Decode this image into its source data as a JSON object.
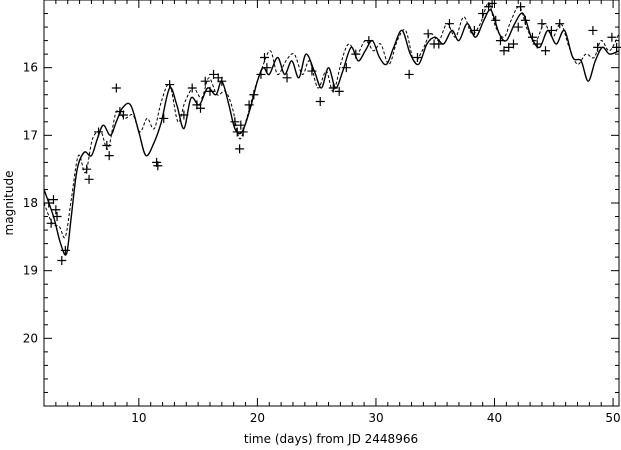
{
  "chart_data": {
    "type": "scatter",
    "title": "",
    "xlabel": "time (days) from JD 2448966",
    "ylabel": "magnitude",
    "xlim": [
      2,
      50.5
    ],
    "ylim": [
      21.0,
      15.0
    ],
    "y_inverted": true,
    "grid": false,
    "x_ticks": [
      10,
      20,
      30,
      40,
      50
    ],
    "y_ticks": [
      16,
      17,
      18,
      19,
      20
    ],
    "series": [
      {
        "style": "plus-markers",
        "color": "#000000",
        "points": [
          [
            2.4,
            18.0
          ],
          [
            2.6,
            18.3
          ],
          [
            2.8,
            17.95
          ],
          [
            3.0,
            18.1
          ],
          [
            3.1,
            18.2
          ],
          [
            3.5,
            18.85
          ],
          [
            3.8,
            18.7
          ],
          [
            5.6,
            17.5
          ],
          [
            5.8,
            17.65
          ],
          [
            6.6,
            16.95
          ],
          [
            7.3,
            17.15
          ],
          [
            7.5,
            17.3
          ],
          [
            8.1,
            16.3
          ],
          [
            8.4,
            16.65
          ],
          [
            8.7,
            16.7
          ],
          [
            11.5,
            17.4
          ],
          [
            11.6,
            17.45
          ],
          [
            12.1,
            16.75
          ],
          [
            12.6,
            16.25
          ],
          [
            13.8,
            16.7
          ],
          [
            14.5,
            16.3
          ],
          [
            14.9,
            16.55
          ],
          [
            15.2,
            16.6
          ],
          [
            15.6,
            16.2
          ],
          [
            16.0,
            16.35
          ],
          [
            16.3,
            16.1
          ],
          [
            16.7,
            16.15
          ],
          [
            17.0,
            16.2
          ],
          [
            18.1,
            16.8
          ],
          [
            18.3,
            16.95
          ],
          [
            18.5,
            17.2
          ],
          [
            18.6,
            16.85
          ],
          [
            18.8,
            16.95
          ],
          [
            19.3,
            16.55
          ],
          [
            19.7,
            16.4
          ],
          [
            20.3,
            16.1
          ],
          [
            20.6,
            15.85
          ],
          [
            20.8,
            16.0
          ],
          [
            22.5,
            16.15
          ],
          [
            24.6,
            16.05
          ],
          [
            25.3,
            16.5
          ],
          [
            26.4,
            16.3
          ],
          [
            26.9,
            16.35
          ],
          [
            27.5,
            16.0
          ],
          [
            28.3,
            15.8
          ],
          [
            29.4,
            15.6
          ],
          [
            32.8,
            16.1
          ],
          [
            33.5,
            15.85
          ],
          [
            34.4,
            15.5
          ],
          [
            34.9,
            15.65
          ],
          [
            35.3,
            15.65
          ],
          [
            36.2,
            15.35
          ],
          [
            38.3,
            15.45
          ],
          [
            39.0,
            15.2
          ],
          [
            39.5,
            15.1
          ],
          [
            39.8,
            15.05
          ],
          [
            40.1,
            15.3
          ],
          [
            40.5,
            15.6
          ],
          [
            40.8,
            15.75
          ],
          [
            41.2,
            15.7
          ],
          [
            41.6,
            15.65
          ],
          [
            42.0,
            15.4
          ],
          [
            42.2,
            15.1
          ],
          [
            42.6,
            15.3
          ],
          [
            43.2,
            15.55
          ],
          [
            43.6,
            15.65
          ],
          [
            44.0,
            15.35
          ],
          [
            44.3,
            15.75
          ],
          [
            44.8,
            15.45
          ],
          [
            45.5,
            15.35
          ],
          [
            48.3,
            15.45
          ],
          [
            48.7,
            15.7
          ],
          [
            49.9,
            15.55
          ],
          [
            50.3,
            15.7
          ]
        ]
      },
      {
        "style": "solid-line",
        "color": "#000000",
        "points": [
          [
            2.0,
            17.8
          ],
          [
            2.8,
            18.2
          ],
          [
            3.4,
            18.6
          ],
          [
            3.9,
            18.75
          ],
          [
            4.3,
            18.2
          ],
          [
            4.8,
            17.5
          ],
          [
            5.4,
            17.25
          ],
          [
            6.0,
            17.3
          ],
          [
            6.5,
            17.05
          ],
          [
            7.0,
            16.85
          ],
          [
            7.6,
            17.0
          ],
          [
            8.1,
            16.8
          ],
          [
            8.6,
            16.6
          ],
          [
            9.3,
            16.55
          ],
          [
            10.0,
            16.95
          ],
          [
            10.6,
            17.3
          ],
          [
            11.3,
            17.1
          ],
          [
            11.9,
            16.8
          ],
          [
            12.6,
            16.3
          ],
          [
            13.2,
            16.55
          ],
          [
            13.8,
            16.9
          ],
          [
            14.4,
            16.45
          ],
          [
            15.1,
            16.55
          ],
          [
            15.8,
            16.3
          ],
          [
            16.5,
            16.4
          ],
          [
            17.0,
            16.2
          ],
          [
            17.6,
            16.55
          ],
          [
            18.1,
            16.9
          ],
          [
            18.7,
            16.95
          ],
          [
            19.4,
            16.6
          ],
          [
            20.0,
            16.2
          ],
          [
            20.5,
            16.0
          ],
          [
            21.0,
            16.1
          ],
          [
            21.7,
            15.85
          ],
          [
            22.3,
            16.1
          ],
          [
            22.9,
            15.9
          ],
          [
            23.5,
            16.15
          ],
          [
            24.1,
            15.8
          ],
          [
            24.8,
            16.05
          ],
          [
            25.4,
            16.3
          ],
          [
            26.0,
            16.0
          ],
          [
            26.6,
            16.3
          ],
          [
            27.2,
            16.05
          ],
          [
            27.9,
            15.7
          ],
          [
            28.5,
            15.9
          ],
          [
            29.1,
            15.75
          ],
          [
            29.7,
            15.6
          ],
          [
            30.3,
            15.85
          ],
          [
            30.9,
            15.95
          ],
          [
            31.5,
            15.7
          ],
          [
            32.2,
            15.45
          ],
          [
            32.9,
            15.8
          ],
          [
            33.6,
            15.95
          ],
          [
            34.3,
            15.65
          ],
          [
            35.0,
            15.55
          ],
          [
            35.7,
            15.65
          ],
          [
            36.4,
            15.45
          ],
          [
            37.0,
            15.6
          ],
          [
            37.7,
            15.35
          ],
          [
            38.4,
            15.55
          ],
          [
            39.1,
            15.3
          ],
          [
            39.7,
            15.15
          ],
          [
            40.4,
            15.5
          ],
          [
            41.0,
            15.6
          ],
          [
            41.7,
            15.35
          ],
          [
            42.4,
            15.2
          ],
          [
            43.1,
            15.55
          ],
          [
            43.8,
            15.7
          ],
          [
            44.5,
            15.45
          ],
          [
            45.2,
            15.65
          ],
          [
            45.9,
            15.45
          ],
          [
            46.6,
            15.85
          ],
          [
            47.3,
            15.9
          ],
          [
            47.9,
            16.2
          ],
          [
            48.5,
            15.9
          ],
          [
            49.1,
            15.7
          ],
          [
            49.7,
            15.8
          ],
          [
            50.5,
            15.75
          ]
        ]
      },
      {
        "style": "dashed-line",
        "color": "#000000",
        "points": [
          [
            2.0,
            18.0
          ],
          [
            2.7,
            18.3
          ],
          [
            3.3,
            18.35
          ],
          [
            3.8,
            18.5
          ],
          [
            4.3,
            17.95
          ],
          [
            4.9,
            17.3
          ],
          [
            5.5,
            17.55
          ],
          [
            6.1,
            17.05
          ],
          [
            6.8,
            16.95
          ],
          [
            7.4,
            17.2
          ],
          [
            8.1,
            16.65
          ],
          [
            8.8,
            16.75
          ],
          [
            9.5,
            16.7
          ],
          [
            10.1,
            16.95
          ],
          [
            10.7,
            16.75
          ],
          [
            11.3,
            16.9
          ],
          [
            11.9,
            16.5
          ],
          [
            12.6,
            16.25
          ],
          [
            13.3,
            16.8
          ],
          [
            13.9,
            16.5
          ],
          [
            14.6,
            16.3
          ],
          [
            15.3,
            16.45
          ],
          [
            15.9,
            16.15
          ],
          [
            16.6,
            16.4
          ],
          [
            17.3,
            16.35
          ],
          [
            17.9,
            16.6
          ],
          [
            18.5,
            17.05
          ],
          [
            19.1,
            16.75
          ],
          [
            19.8,
            16.3
          ],
          [
            20.4,
            16.0
          ],
          [
            21.1,
            15.75
          ],
          [
            21.7,
            16.1
          ],
          [
            22.4,
            15.9
          ],
          [
            23.1,
            15.8
          ],
          [
            23.8,
            16.1
          ],
          [
            24.4,
            15.9
          ],
          [
            25.1,
            16.3
          ],
          [
            25.8,
            16.05
          ],
          [
            26.4,
            16.35
          ],
          [
            27.1,
            15.9
          ],
          [
            27.7,
            15.65
          ],
          [
            28.4,
            15.8
          ],
          [
            29.1,
            15.6
          ],
          [
            29.8,
            15.75
          ],
          [
            30.4,
            15.65
          ],
          [
            31.1,
            15.95
          ],
          [
            31.8,
            15.6
          ],
          [
            32.5,
            15.45
          ],
          [
            33.2,
            15.9
          ],
          [
            33.9,
            15.75
          ],
          [
            34.6,
            15.5
          ],
          [
            35.3,
            15.6
          ],
          [
            36.0,
            15.35
          ],
          [
            36.7,
            15.55
          ],
          [
            37.4,
            15.25
          ],
          [
            38.1,
            15.5
          ],
          [
            38.8,
            15.35
          ],
          [
            39.5,
            15.05
          ],
          [
            40.1,
            15.4
          ],
          [
            40.8,
            15.55
          ],
          [
            41.4,
            15.3
          ],
          [
            42.1,
            15.1
          ],
          [
            42.8,
            15.45
          ],
          [
            43.5,
            15.6
          ],
          [
            44.2,
            15.35
          ],
          [
            44.9,
            15.55
          ],
          [
            45.6,
            15.35
          ],
          [
            46.3,
            15.7
          ],
          [
            47.0,
            15.95
          ],
          [
            47.7,
            15.8
          ],
          [
            48.4,
            15.85
          ],
          [
            49.0,
            15.6
          ],
          [
            49.7,
            15.75
          ],
          [
            50.5,
            15.5
          ]
        ]
      }
    ]
  }
}
